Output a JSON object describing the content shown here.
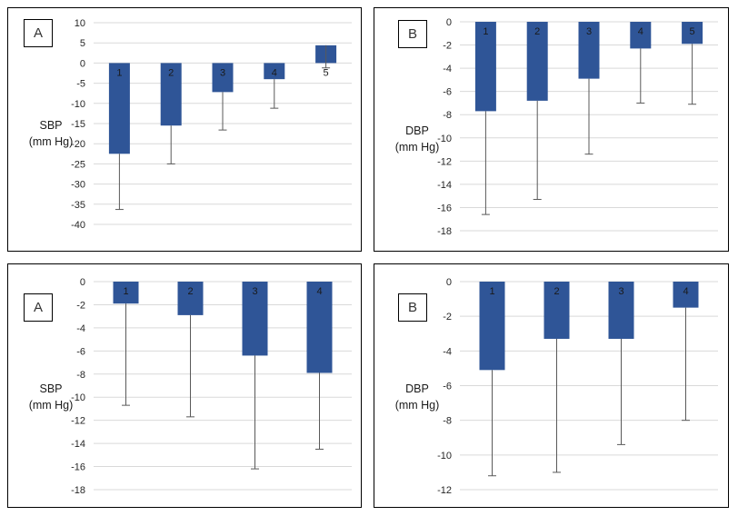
{
  "colors": {
    "bar": "#2F5597",
    "gridline": "#D9D9D9",
    "error_bar": "#595959",
    "tick_text": "#262626",
    "category_text": "#1a1a1a",
    "panel_border": "#000000",
    "background": "#FFFFFF"
  },
  "chart_data": [
    {
      "type": "bar",
      "panel_label": "A",
      "ylabel": "SBP (mm Hg)",
      "ylabel_line1": "SBP",
      "ylabel_line2": "(mm Hg)",
      "categories": [
        "1",
        "2",
        "3",
        "4",
        "5"
      ],
      "values": [
        -22.5,
        -15.5,
        -7.2,
        -4.0,
        4.4
      ],
      "error_ends": [
        -36.3,
        -25.0,
        -16.6,
        -11.2,
        -1.2
      ],
      "ymax": 10,
      "ymin": -40,
      "ystep": 5,
      "grid": true,
      "error_direction": "minus",
      "legend": "none"
    },
    {
      "type": "bar",
      "panel_label": "B",
      "ylabel": "DBP (mm Hg)",
      "ylabel_line1": "DBP",
      "ylabel_line2": "(mm Hg)",
      "categories": [
        "1",
        "2",
        "3",
        "4",
        "5"
      ],
      "values": [
        -7.7,
        -6.8,
        -4.9,
        -2.3,
        -1.9
      ],
      "error_ends": [
        -16.6,
        -15.3,
        -11.4,
        -7.0,
        -7.1
      ],
      "ymax": 0,
      "ymin": -18,
      "ystep": 2,
      "grid": true,
      "error_direction": "minus",
      "legend": "none"
    },
    {
      "type": "bar",
      "panel_label": "A",
      "ylabel": "SBP (mm Hg)",
      "ylabel_line1": "SBP",
      "ylabel_line2": "(mm Hg)",
      "categories": [
        "1",
        "2",
        "3",
        "4"
      ],
      "values": [
        -1.9,
        -2.9,
        -6.4,
        -7.9
      ],
      "error_ends": [
        -10.7,
        -11.7,
        -16.2,
        -14.5
      ],
      "ymax": 0,
      "ymin": -18,
      "ystep": 2,
      "grid": true,
      "error_direction": "minus",
      "legend": "none"
    },
    {
      "type": "bar",
      "panel_label": "B",
      "ylabel": "DBP (mm Hg)",
      "ylabel_line1": "DBP",
      "ylabel_line2": "(mm Hg)",
      "categories": [
        "1",
        "2",
        "3",
        "4"
      ],
      "values": [
        -5.1,
        -3.3,
        -3.3,
        -1.5
      ],
      "error_ends": [
        -11.2,
        -11.0,
        -9.4,
        -8.0
      ],
      "ymax": 0,
      "ymin": -12,
      "ystep": 2,
      "grid": true,
      "error_direction": "minus",
      "legend": "none"
    }
  ]
}
